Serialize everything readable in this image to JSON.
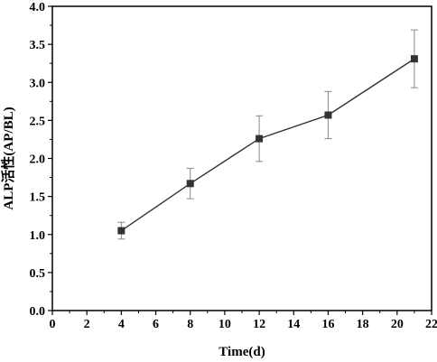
{
  "chart_data": {
    "type": "line",
    "xlabel": "Time(d)",
    "ylabel": "ALP活性(AP/BL)",
    "xlim": [
      0,
      22
    ],
    "ylim": [
      0.0,
      4.0
    ],
    "x_ticks": [
      "0",
      "2",
      "4",
      "6",
      "8",
      "10",
      "12",
      "14",
      "16",
      "18",
      "20",
      "22"
    ],
    "y_ticks": [
      "0.0",
      "0.5",
      "1.0",
      "1.5",
      "2.0",
      "2.5",
      "3.0",
      "3.5",
      "4.0"
    ],
    "grid": false,
    "marker": "square",
    "series": [
      {
        "x": [
          4,
          8,
          12,
          16,
          21
        ],
        "y": [
          1.05,
          1.67,
          2.26,
          2.57,
          3.31
        ],
        "error": [
          0.11,
          0.2,
          0.3,
          0.31,
          0.38
        ],
        "color": "#333333"
      }
    ]
  }
}
